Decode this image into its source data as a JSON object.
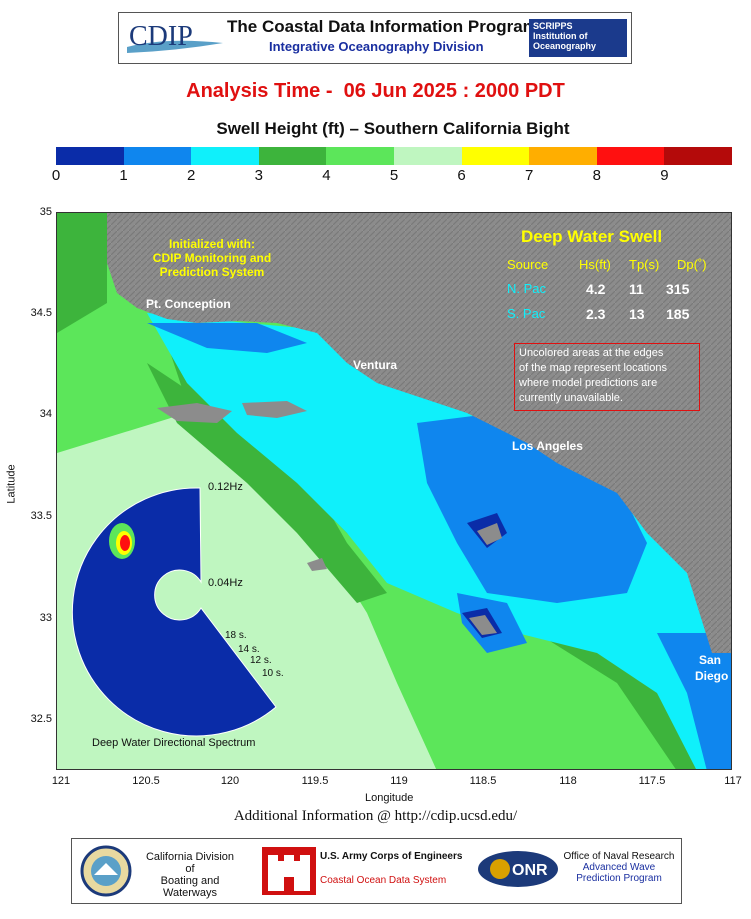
{
  "header": {
    "logo_text": "CDIP",
    "title": "The Coastal Data Information Program",
    "subtitle": "Integrative Oceanography Division",
    "scripps_line1": "SCRIPPS",
    "scripps_line2": "Institution of",
    "scripps_line3": "Oceanography"
  },
  "analysis_time": "Analysis Time -  06 Jun 2025 : 2000 PDT",
  "map_title": "Swell Height (ft) – Southern California Bight",
  "colorbar": {
    "colors": [
      "#0a2ca8",
      "#0f86ee",
      "#0ff0fb",
      "#3db43c",
      "#5ce65a",
      "#bff6c0",
      "#ffff00",
      "#ffae00",
      "#ff1010",
      "#b40a0a"
    ],
    "labels": [
      "0",
      "1",
      "2",
      "3",
      "4",
      "5",
      "6",
      "7",
      "8",
      "9"
    ]
  },
  "axes": {
    "y_ticks": [
      "35",
      "34.5",
      "34",
      "33.5",
      "33",
      "32.5"
    ],
    "x_ticks": [
      "121",
      "120.5",
      "120",
      "119.5",
      "119",
      "118.5",
      "118",
      "117.5",
      "117"
    ],
    "xlabel": "Longitude",
    "ylabel": "Latitude"
  },
  "map": {
    "init_text": [
      "Initialized with:",
      "CDIP Monitoring and",
      "Prediction System"
    ],
    "places": {
      "pt_conception": "Pt. Conception",
      "ventura": "Ventura",
      "los_angeles": "Los Angeles",
      "san_diego_1": "San",
      "san_diego_2": "Diego"
    },
    "swell_table": {
      "title": "Deep Water Swell",
      "headers": [
        "Source",
        "Hs(ft)",
        "Tp(s)",
        "Dp(˚)"
      ],
      "rows": [
        {
          "source": "N. Pac",
          "hs": "4.2",
          "tp": "11",
          "dp": "315"
        },
        {
          "source": "S. Pac",
          "hs": "2.3",
          "tp": "13",
          "dp": "185"
        }
      ]
    },
    "note": [
      "Uncolored areas at the edges",
      "of the map represent locations",
      "where model predictions are",
      "currently unavailable."
    ],
    "spectrum": {
      "freq_high": "0.12Hz",
      "freq_low": "0.04Hz",
      "periods": [
        "18 s.",
        "14 s.",
        "12 s.",
        "10 s."
      ],
      "caption": "Deep Water Directional Spectrum"
    }
  },
  "additional_info": "Additional Information @ http://cdip.ucsd.edu/",
  "footer": {
    "ca_line1": "California Division",
    "ca_line2": "of",
    "ca_line3": "Boating and Waterways",
    "usace_line1": "U.S. Army Corps of Engineers",
    "usace_line2": "Coastal Ocean Data System",
    "onr_line1": "Office of Naval Research",
    "onr_line2": "Advanced Wave",
    "onr_line3": "Prediction Program"
  }
}
